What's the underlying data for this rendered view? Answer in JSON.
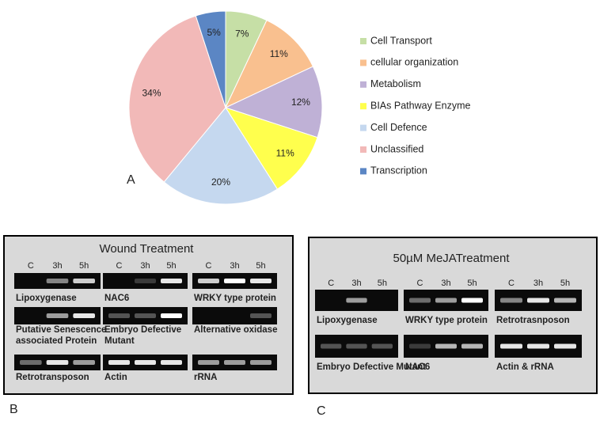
{
  "chart_data": {
    "type": "pie",
    "categories": [
      "Cell Transport",
      "cellular organization",
      "Metabolism",
      "BIAs Pathway Enzyme",
      "Cell Defence",
      "Unclassified",
      "Transcription"
    ],
    "values": [
      7,
      11,
      12,
      11,
      20,
      34,
      5
    ],
    "value_labels": [
      "7%",
      "11%",
      "12%",
      "11%",
      "20%",
      "34%",
      "5%"
    ],
    "colors": [
      "#c6dfa6",
      "#f9c08f",
      "#bfb1d6",
      "#ffff4d",
      "#c5d8ef",
      "#f2b9b8",
      "#5b86c4"
    ],
    "legend": "right"
  },
  "panel_labels": [
    "A",
    "B",
    "C"
  ],
  "panel_b": {
    "title": "Wound Treatment",
    "lanes": [
      "C",
      "3h",
      "5h"
    ],
    "gels": [
      {
        "label": [
          "Lipoxygenase"
        ]
      },
      {
        "label": [
          "NAC6"
        ]
      },
      {
        "label": [
          "WRKY type  protein"
        ]
      },
      {
        "label": [
          "Putative  Senescence",
          "associated Protein"
        ]
      },
      {
        "label": [
          "Embryo Defective",
          "Mutant"
        ]
      },
      {
        "label": [
          "Alternative oxidase"
        ]
      },
      {
        "label": [
          "Retrotransposon"
        ]
      },
      {
        "label": [
          "Actin"
        ]
      },
      {
        "label": [
          "rRNA"
        ]
      }
    ]
  },
  "panel_c": {
    "title": "50µM MeJATreatment",
    "lanes": [
      "C",
      "3h",
      "5h"
    ],
    "gels": [
      {
        "label": [
          "Lipoxygenase"
        ]
      },
      {
        "label": [
          "WRKY type  protein"
        ]
      },
      {
        "label": [
          "Retrotrasnposon"
        ]
      },
      {
        "label": [
          "Embryo  Defective  Mutant"
        ]
      },
      {
        "label": [
          "NAC6"
        ]
      },
      {
        "label": [
          "Actin & rRNA"
        ]
      }
    ]
  }
}
